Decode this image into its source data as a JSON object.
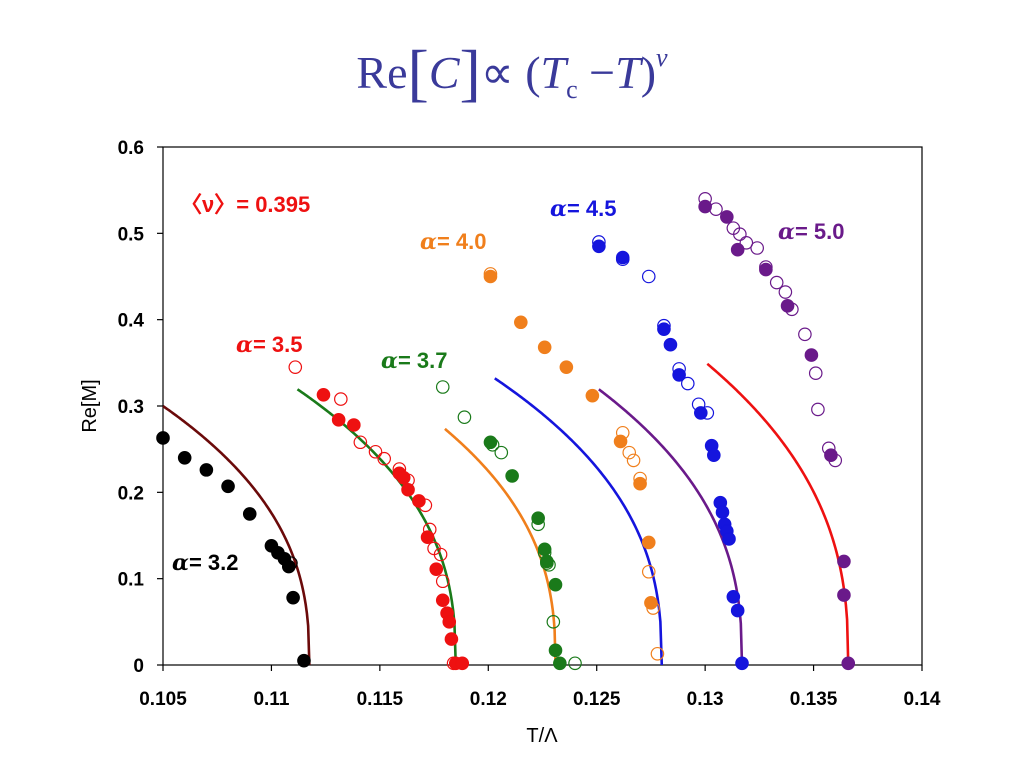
{
  "slide_title": {
    "lhs": "Re",
    "C": "C",
    "prop": "∝ (",
    "T1": "T",
    "sub": "c",
    "minus": " −",
    "T2": "T",
    "close": ")",
    "sup": "ν"
  },
  "chart_data": {
    "type": "scatter",
    "xlabel": "T/Λ",
    "ylabel": "Re[M]",
    "xlim": [
      0.105,
      0.14
    ],
    "ylim": [
      0,
      0.6
    ],
    "xticks": [
      0.105,
      0.11,
      0.115,
      0.12,
      0.125,
      0.13,
      0.135,
      0.14
    ],
    "xtick_labels": [
      "0.105",
      "0.11",
      "0.115",
      "0.12",
      "0.125",
      "0.13",
      "0.135",
      "0.14"
    ],
    "yticks": [
      0,
      0.1,
      0.2,
      0.3,
      0.4,
      0.5,
      0.6
    ],
    "ytick_labels": [
      "0",
      "0.1",
      "0.2",
      "0.3",
      "0.4",
      "0.5",
      "0.6"
    ],
    "grid": false,
    "annotation": {
      "text": "〈ν〉=  0.395",
      "color": "#ee1111",
      "nu_mean": 0.395
    },
    "series": [
      {
        "alpha_label": "= 3.2",
        "alpha_symbol": "α",
        "point_color": "#000000",
        "fit_color": "#6b0a0a",
        "Tc": 0.11175,
        "amplitude": 2.16,
        "fit_x_range": [
          0.105,
          0.11175
        ],
        "filled": [
          [
            0.105,
            0.263
          ],
          [
            0.106,
            0.24
          ],
          [
            0.107,
            0.226
          ],
          [
            0.108,
            0.207
          ],
          [
            0.109,
            0.175
          ],
          [
            0.11,
            0.138
          ],
          [
            0.1103,
            0.13
          ],
          [
            0.1106,
            0.123
          ],
          [
            0.1108,
            0.114
          ],
          [
            0.111,
            0.078
          ],
          [
            0.1115,
            0.005
          ]
        ],
        "open": [
          [
            0.1109,
            0.118
          ]
        ]
      },
      {
        "alpha_label": "= 3.5",
        "alpha_symbol": "α",
        "point_color": "#ee1111",
        "fit_color": "#1a7a1a",
        "Tc": 0.1185,
        "amplitude": 2.23,
        "fit_x_range": [
          0.1112,
          0.1185
        ],
        "filled": [
          [
            0.1124,
            0.313
          ],
          [
            0.1131,
            0.284
          ],
          [
            0.1138,
            0.278
          ],
          [
            0.1159,
            0.222
          ],
          [
            0.1161,
            0.217
          ],
          [
            0.1163,
            0.203
          ],
          [
            0.1168,
            0.19
          ],
          [
            0.1172,
            0.148
          ],
          [
            0.1176,
            0.111
          ],
          [
            0.1179,
            0.075
          ],
          [
            0.1181,
            0.06
          ],
          [
            0.1182,
            0.05
          ],
          [
            0.1183,
            0.03
          ],
          [
            0.1185,
            0.002
          ],
          [
            0.1188,
            0.002
          ]
        ],
        "open": [
          [
            0.1111,
            0.345
          ],
          [
            0.1132,
            0.308
          ],
          [
            0.1141,
            0.258
          ],
          [
            0.1148,
            0.247
          ],
          [
            0.1152,
            0.239
          ],
          [
            0.1159,
            0.227
          ],
          [
            0.1163,
            0.214
          ],
          [
            0.1171,
            0.185
          ],
          [
            0.1173,
            0.157
          ],
          [
            0.1175,
            0.135
          ],
          [
            0.1178,
            0.128
          ],
          [
            0.1179,
            0.097
          ],
          [
            0.1184,
            0.002
          ]
        ]
      },
      {
        "alpha_label": "= 3.7",
        "alpha_symbol": "α",
        "point_color": "#1a7a1a",
        "fit_color": "#f07f1c",
        "Tc": 0.1231,
        "amplitude": 2.2,
        "fit_x_range": [
          0.118,
          0.1231
        ],
        "filled": [
          [
            0.1201,
            0.258
          ],
          [
            0.1211,
            0.219
          ],
          [
            0.1223,
            0.17
          ],
          [
            0.1226,
            0.134
          ],
          [
            0.1227,
            0.12
          ],
          [
            0.1231,
            0.093
          ],
          [
            0.1231,
            0.017
          ],
          [
            0.1233,
            0.002
          ]
        ],
        "open": [
          [
            0.1179,
            0.322
          ],
          [
            0.1189,
            0.287
          ],
          [
            0.1202,
            0.255
          ],
          [
            0.1206,
            0.246
          ],
          [
            0.1223,
            0.163
          ],
          [
            0.1226,
            0.13
          ],
          [
            0.1227,
            0.118
          ],
          [
            0.1228,
            0.116
          ],
          [
            0.123,
            0.05
          ],
          [
            0.124,
            0.002
          ]
        ]
      },
      {
        "alpha_label": "= 4.0",
        "alpha_symbol": "α",
        "point_color": "#f07f1c",
        "fit_color": "#1515dd",
        "Tc": 0.128,
        "amplitude": 2.27,
        "fit_x_range": [
          0.1203,
          0.128
        ],
        "filled": [
          [
            0.1201,
            0.45
          ],
          [
            0.1215,
            0.397
          ],
          [
            0.1226,
            0.368
          ],
          [
            0.1236,
            0.345
          ],
          [
            0.1248,
            0.312
          ],
          [
            0.1261,
            0.259
          ],
          [
            0.127,
            0.21
          ],
          [
            0.1274,
            0.142
          ],
          [
            0.1275,
            0.072
          ]
        ],
        "open": [
          [
            0.1201,
            0.453
          ],
          [
            0.1262,
            0.269
          ],
          [
            0.1265,
            0.246
          ],
          [
            0.1267,
            0.237
          ],
          [
            0.127,
            0.216
          ],
          [
            0.1274,
            0.108
          ],
          [
            0.1276,
            0.066
          ],
          [
            0.1278,
            0.013
          ]
        ]
      },
      {
        "alpha_label": "= 4.5",
        "alpha_symbol": "α",
        "point_color": "#1515dd",
        "fit_color": "#6a1a8a",
        "Tc": 0.1317,
        "amplitude": 2.32,
        "fit_x_range": [
          0.1251,
          0.1317
        ],
        "filled": [
          [
            0.1251,
            0.485
          ],
          [
            0.1262,
            0.472
          ],
          [
            0.1281,
            0.389
          ],
          [
            0.1284,
            0.371
          ],
          [
            0.1288,
            0.336
          ],
          [
            0.1298,
            0.292
          ],
          [
            0.1303,
            0.254
          ],
          [
            0.1304,
            0.243
          ],
          [
            0.1307,
            0.188
          ],
          [
            0.1308,
            0.177
          ],
          [
            0.1309,
            0.163
          ],
          [
            0.131,
            0.155
          ],
          [
            0.1311,
            0.146
          ],
          [
            0.1313,
            0.079
          ],
          [
            0.1315,
            0.063
          ],
          [
            0.1317,
            0.002
          ]
        ],
        "open": [
          [
            0.1251,
            0.49
          ],
          [
            0.1262,
            0.47
          ],
          [
            0.1274,
            0.45
          ],
          [
            0.1281,
            0.393
          ],
          [
            0.1288,
            0.343
          ],
          [
            0.1292,
            0.326
          ],
          [
            0.1297,
            0.302
          ],
          [
            0.1301,
            0.292
          ]
        ]
      },
      {
        "alpha_label": "= 5.0",
        "alpha_symbol": "α",
        "point_color": "#6a1a8a",
        "fit_color": "#ee1111",
        "Tc": 0.1366,
        "amplitude": 2.55,
        "fit_x_range": [
          0.1301,
          0.1366
        ],
        "filled": [
          [
            0.13,
            0.531
          ],
          [
            0.131,
            0.519
          ],
          [
            0.1315,
            0.481
          ],
          [
            0.1328,
            0.458
          ],
          [
            0.1338,
            0.416
          ],
          [
            0.1349,
            0.359
          ],
          [
            0.1358,
            0.243
          ],
          [
            0.1364,
            0.12
          ],
          [
            0.1364,
            0.081
          ],
          [
            0.1366,
            0.002
          ]
        ],
        "open": [
          [
            0.13,
            0.54
          ],
          [
            0.1305,
            0.528
          ],
          [
            0.1313,
            0.506
          ],
          [
            0.1316,
            0.499
          ],
          [
            0.1319,
            0.489
          ],
          [
            0.1324,
            0.483
          ],
          [
            0.1328,
            0.461
          ],
          [
            0.1333,
            0.443
          ],
          [
            0.1337,
            0.432
          ],
          [
            0.134,
            0.412
          ],
          [
            0.1346,
            0.383
          ],
          [
            0.1351,
            0.338
          ],
          [
            0.1352,
            0.296
          ],
          [
            0.1357,
            0.251
          ],
          [
            0.136,
            0.237
          ]
        ]
      }
    ]
  }
}
